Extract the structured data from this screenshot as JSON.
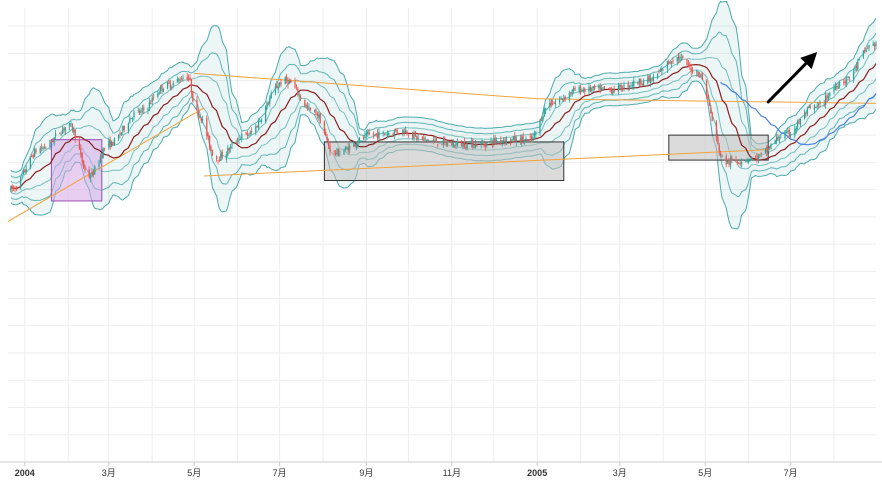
{
  "chart_data": {
    "type": "candlestick",
    "x_axis": {
      "tick_labels": [
        {
          "label": "2004",
          "date": "2004-01-01",
          "bold": true
        },
        {
          "label": "3月",
          "date": "2004-03-01",
          "bold": false
        },
        {
          "label": "5月",
          "date": "2004-05-01",
          "bold": false
        },
        {
          "label": "7月",
          "date": "2004-07-01",
          "bold": false
        },
        {
          "label": "9月",
          "date": "2004-09-01",
          "bold": false
        },
        {
          "label": "11月",
          "date": "2004-11-01",
          "bold": false
        },
        {
          "label": "2005",
          "date": "2005-01-01",
          "bold": true
        },
        {
          "label": "3月",
          "date": "2005-03-01",
          "bold": false
        },
        {
          "label": "5月",
          "date": "2005-05-01",
          "bold": false
        },
        {
          "label": "7月",
          "date": "2005-07-01",
          "bold": false
        }
      ],
      "range": [
        "2003-12-20",
        "2005-08-31"
      ]
    },
    "y_axis": {
      "labels_visible": false,
      "range": [
        0,
        100
      ]
    },
    "grid": true,
    "close_series": {
      "dates": [
        "2003-12-22",
        "2004-01-12",
        "2004-02-02",
        "2004-02-16",
        "2004-03-01",
        "2004-03-22",
        "2004-04-12",
        "2004-04-26",
        "2004-05-03",
        "2004-05-17",
        "2004-06-07",
        "2004-07-05",
        "2004-07-26",
        "2004-08-09",
        "2004-09-06",
        "2004-09-27",
        "2004-10-11",
        "2004-11-01",
        "2004-11-22",
        "2004-12-06",
        "2004-12-27",
        "2005-01-10",
        "2005-01-31",
        "2005-02-21",
        "2005-03-21",
        "2005-04-11",
        "2005-04-25",
        "2005-05-16",
        "2005-06-06",
        "2005-06-27",
        "2005-07-18",
        "2005-08-08",
        "2005-08-29"
      ],
      "values": [
        60,
        69,
        74,
        63,
        70,
        77,
        83,
        85,
        77,
        67,
        72,
        84,
        77,
        68,
        72,
        73,
        71,
        70,
        70,
        71,
        71,
        79,
        82,
        82,
        84,
        89,
        86,
        66,
        67,
        72,
        78,
        84,
        92
      ]
    },
    "overlays": [
      {
        "kind": "bollinger-envelope",
        "bands": 3,
        "color": "#2e9c9c"
      },
      {
        "kind": "moving-average",
        "color": "#8b1e1e"
      },
      {
        "kind": "moving-average",
        "color": "#4f7fe0"
      },
      {
        "kind": "trend-line",
        "from": [
          "2004-05-01",
          85.6
        ],
        "to": [
          "2005-01-01",
          80
        ],
        "color": "#f2a33b"
      },
      {
        "kind": "trend-line",
        "from": [
          "2005-01-01",
          80
        ],
        "to": [
          "2005-08-31",
          79
        ],
        "color": "#f2a33b"
      },
      {
        "kind": "trend-line",
        "from": [
          "2003-12-20",
          53
        ],
        "to": [
          "2004-05-08",
          78
        ],
        "color": "#f2a33b"
      },
      {
        "kind": "trend-line",
        "from": [
          "2004-05-08",
          63
        ],
        "to": [
          "2005-06-15",
          68.8
        ],
        "color": "#f2a33b"
      }
    ],
    "annotations": [
      {
        "kind": "rectangle",
        "from": [
          "2004-01-20",
          57.5
        ],
        "to": [
          "2004-02-25",
          71
        ],
        "fill": "#d6a8e8",
        "stroke": "#9b4fb5"
      },
      {
        "kind": "rectangle",
        "from": [
          "2004-08-02",
          62
        ],
        "to": [
          "2005-01-20",
          70.5
        ],
        "fill": "#bdbdbd",
        "stroke": "#333333"
      },
      {
        "kind": "rectangle",
        "from": [
          "2005-04-05",
          66.5
        ],
        "to": [
          "2005-06-15",
          72
        ],
        "fill": "#bdbdbd",
        "stroke": "#333333"
      },
      {
        "kind": "arrow",
        "from": [
          "2005-06-15",
          79.3
        ],
        "to": [
          "2005-07-20",
          90.3
        ],
        "color": "#000000"
      }
    ],
    "colors": {
      "up": "#26a69a",
      "down": "#ef5350",
      "grid": "#eeeeee",
      "axis": "#cccccc"
    }
  }
}
